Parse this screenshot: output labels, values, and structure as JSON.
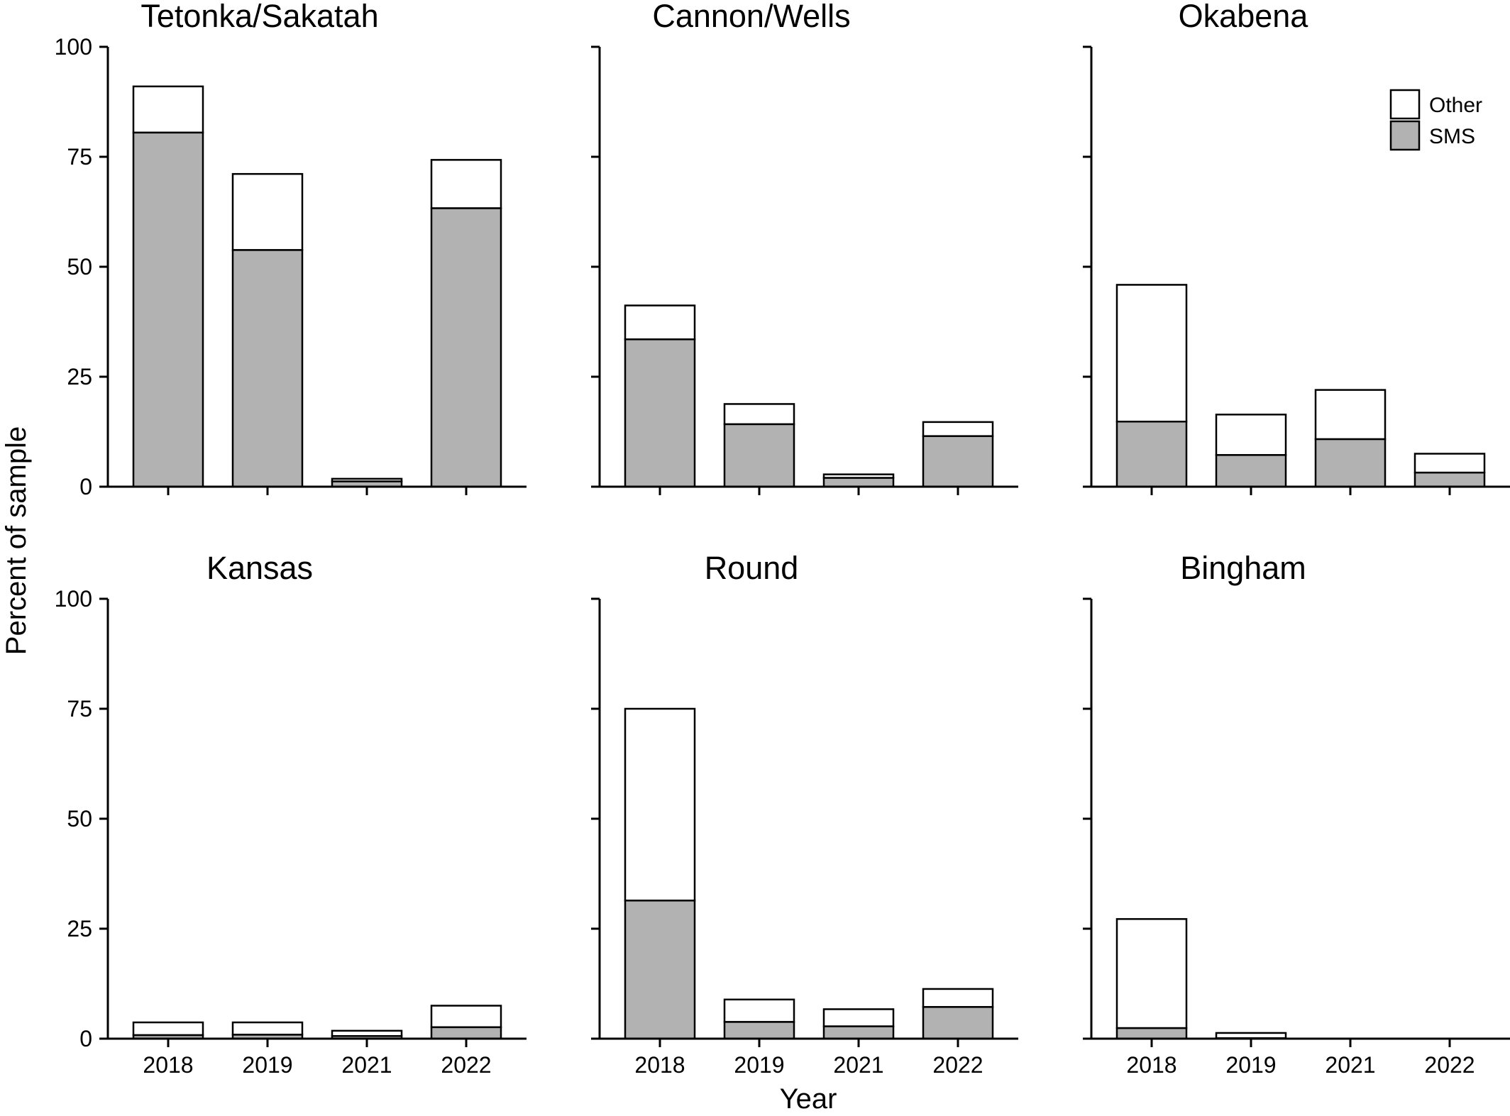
{
  "chart_data": {
    "type": "bar",
    "stacked": true,
    "layout": "2x3 facets",
    "xlabel": "Year",
    "ylabel": "Percent of sample",
    "ylim": [
      0,
      100
    ],
    "yticks": [
      0,
      25,
      50,
      75,
      100
    ],
    "categories": [
      "2018",
      "2019",
      "2021",
      "2022"
    ],
    "legend": {
      "placement": "top-right of Okabena panel",
      "entries": [
        {
          "name": "Other",
          "color": "#ffffff"
        },
        {
          "name": "SMS",
          "color": "#b2b2b2"
        }
      ]
    },
    "grid": false,
    "panels": [
      {
        "title": "Tetonka/Sakatah",
        "series": [
          {
            "name": "SMS",
            "values": [
              80.5,
              53.8,
              1.2,
              63.3
            ]
          },
          {
            "name": "Other",
            "values": [
              10.5,
              17.3,
              0.6,
              11.0
            ]
          }
        ]
      },
      {
        "title": "Cannon/Wells",
        "series": [
          {
            "name": "SMS",
            "values": [
              33.5,
              14.2,
              2.0,
              11.5
            ]
          },
          {
            "name": "Other",
            "values": [
              7.7,
              4.6,
              0.8,
              3.2
            ]
          }
        ]
      },
      {
        "title": "Okabena",
        "series": [
          {
            "name": "SMS",
            "values": [
              14.8,
              7.2,
              10.8,
              3.2
            ]
          },
          {
            "name": "Other",
            "values": [
              31.1,
              9.2,
              11.2,
              4.3
            ]
          }
        ]
      },
      {
        "title": "Kansas",
        "series": [
          {
            "name": "SMS",
            "values": [
              0.8,
              0.9,
              0.6,
              2.6
            ]
          },
          {
            "name": "Other",
            "values": [
              2.9,
              2.8,
              1.2,
              4.9
            ]
          }
        ]
      },
      {
        "title": "Round",
        "series": [
          {
            "name": "SMS",
            "values": [
              31.4,
              3.8,
              2.8,
              7.2
            ]
          },
          {
            "name": "Other",
            "values": [
              43.6,
              5.1,
              3.9,
              4.1
            ]
          }
        ]
      },
      {
        "title": "Bingham",
        "series": [
          {
            "name": "SMS",
            "values": [
              2.4,
              0.1,
              0,
              0
            ]
          },
          {
            "name": "Other",
            "values": [
              24.8,
              1.2,
              0,
              0
            ]
          }
        ]
      }
    ]
  }
}
